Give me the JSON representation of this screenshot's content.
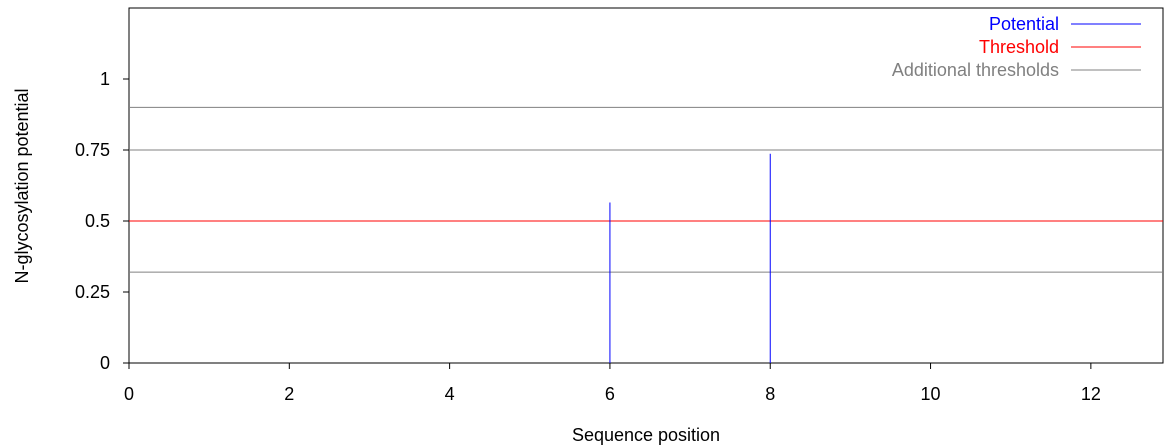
{
  "chart_data": {
    "type": "bar",
    "title": "",
    "xlabel": "Sequence position",
    "ylabel": "N-glycosylation potential",
    "xlim": [
      0,
      12.9
    ],
    "ylim": [
      0,
      1.25
    ],
    "x_ticks": [
      "0",
      "2",
      "4",
      "6",
      "8",
      "10",
      "12"
    ],
    "y_ticks": [
      "0",
      "0.25",
      "0.5",
      "0.75",
      "1"
    ],
    "grid": false,
    "legend_position": "top-right",
    "legend": [
      {
        "label": "Potential",
        "color": "#0000ff"
      },
      {
        "label": "Threshold",
        "color": "#ff0000"
      },
      {
        "label": "Additional thresholds",
        "color": "#808080"
      }
    ],
    "series": [
      {
        "name": "Potential",
        "type": "impulse",
        "color": "#0000ff",
        "points": [
          {
            "x": 6,
            "y": 0.565
          },
          {
            "x": 8,
            "y": 0.737
          }
        ]
      }
    ],
    "threshold": {
      "name": "Threshold",
      "value": 0.5,
      "color": "#ff0000"
    },
    "additional_thresholds": {
      "name": "Additional thresholds",
      "values": [
        0.32,
        0.75,
        0.9
      ],
      "color": "#808080"
    }
  }
}
